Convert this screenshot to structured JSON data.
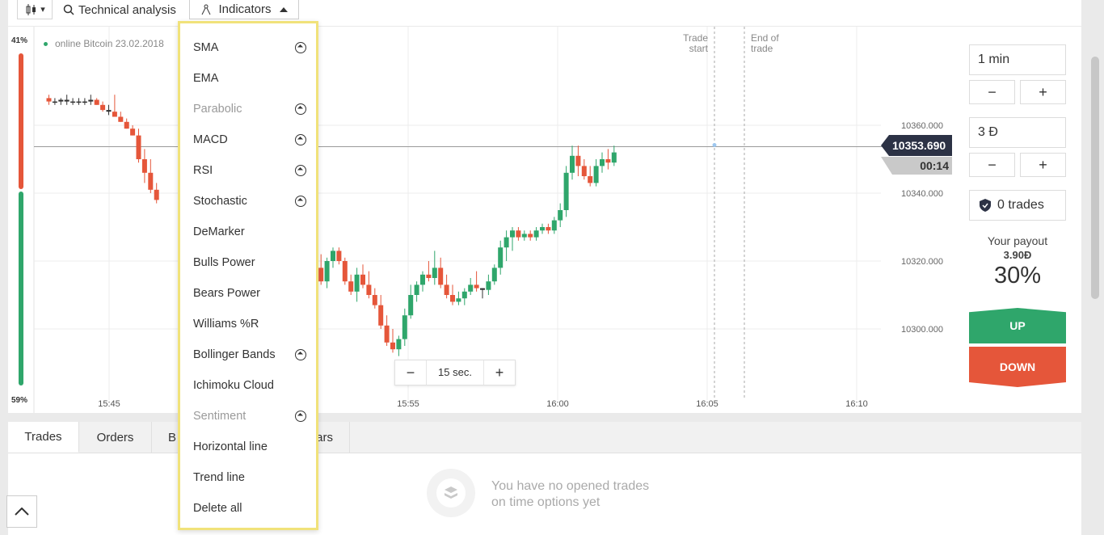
{
  "toolbar": {
    "chart_type_caret": "▾",
    "technical_analysis_label": "Technical analysis",
    "indicators_label": "Indicators"
  },
  "chart": {
    "asset_label": "online Bitcoin 23.02.2018",
    "pct_top": "41%",
    "pct_bottom": "59%",
    "trade_start_label": [
      "Trade",
      "start"
    ],
    "end_of_trade_label": [
      "End of",
      "trade"
    ],
    "current_price": "10353.690",
    "countdown": "00:14",
    "zoom_minus": "−",
    "zoom_value": "15 sec.",
    "zoom_plus": "+",
    "colors": {
      "up": "#2fa66b",
      "down": "#e5563a",
      "price_tag": "#2c3245",
      "countdown_tag": "#c9c9c9"
    }
  },
  "chart_data": {
    "type": "candlestick",
    "y_ticks": [
      "10360.000",
      "10340.000",
      "10320.000",
      "10300.000"
    ],
    "x_ticks": [
      "15:45",
      "15:55",
      "16:00",
      "16:05",
      "16:10"
    ],
    "ylim": [
      10292,
      10372
    ],
    "candles": [
      [
        0.1,
        10368,
        10369,
        10366,
        10367
      ],
      [
        0.14,
        10367,
        10368,
        10366,
        10367
      ],
      [
        0.18,
        10367,
        10368,
        10366,
        10367.5
      ],
      [
        0.22,
        10367.5,
        10369,
        10366,
        10367
      ],
      [
        0.26,
        10367,
        10368,
        10366,
        10367
      ],
      [
        0.3,
        10367,
        10368,
        10366,
        10367
      ],
      [
        0.34,
        10367,
        10368,
        10366,
        10367
      ],
      [
        0.38,
        10367,
        10369,
        10366,
        10367.5
      ],
      [
        0.42,
        10367.5,
        10368,
        10366,
        10366
      ],
      [
        0.46,
        10366,
        10367,
        10364,
        10364.5
      ],
      [
        0.5,
        10364.5,
        10366,
        10363,
        10364
      ],
      [
        0.54,
        10364,
        10369,
        10363,
        10362.5
      ],
      [
        0.58,
        10362.5,
        10364,
        10361,
        10361
      ],
      [
        0.62,
        10361,
        10362,
        10359,
        10359
      ],
      [
        0.66,
        10359,
        10360,
        10357,
        10357
      ],
      [
        0.7,
        10357,
        10359,
        10349,
        10350
      ],
      [
        0.74,
        10350,
        10353,
        10343,
        10346
      ],
      [
        0.78,
        10346,
        10350,
        10340,
        10341
      ],
      [
        0.82,
        10341,
        10343,
        10337,
        10338
      ],
      [
        1.8,
        10320,
        10322,
        10300,
        10301
      ],
      [
        1.84,
        10301,
        10315,
        10300,
        10313
      ],
      [
        1.88,
        10313,
        10319,
        10311,
        10318
      ],
      [
        1.92,
        10318,
        10322,
        10313,
        10314
      ],
      [
        1.96,
        10314,
        10321,
        10312,
        10320
      ],
      [
        2.0,
        10320,
        10324,
        10318,
        10323
      ],
      [
        2.04,
        10323,
        10324,
        10319,
        10320
      ],
      [
        2.08,
        10320,
        10321,
        10313,
        10314
      ],
      [
        2.12,
        10314,
        10316,
        10310,
        10311
      ],
      [
        2.16,
        10311,
        10318,
        10308,
        10316
      ],
      [
        2.2,
        10316,
        10319,
        10312,
        10313
      ],
      [
        2.24,
        10313,
        10317,
        10309,
        10310
      ],
      [
        2.28,
        10310,
        10312,
        10306,
        10307
      ],
      [
        2.32,
        10307,
        10310,
        10300,
        10301
      ],
      [
        2.36,
        10301,
        10304,
        10295,
        10296
      ],
      [
        2.4,
        10296,
        10300,
        10293,
        10294
      ],
      [
        2.44,
        10294,
        10298,
        10292,
        10297
      ],
      [
        2.48,
        10297,
        10306,
        10295,
        10304
      ],
      [
        2.52,
        10304,
        10313,
        10303,
        10310
      ],
      [
        2.56,
        10310,
        10314,
        10308,
        10313
      ],
      [
        2.6,
        10313,
        10317,
        10311,
        10316
      ],
      [
        2.64,
        10316,
        10320,
        10314,
        10315
      ],
      [
        2.68,
        10315,
        10323,
        10313,
        10318
      ],
      [
        2.72,
        10318,
        10321,
        10312,
        10313
      ],
      [
        2.76,
        10313,
        10316,
        10309,
        10310
      ],
      [
        2.8,
        10310,
        10313,
        10307,
        10308
      ],
      [
        2.84,
        10308,
        10311,
        10307,
        10309
      ],
      [
        2.88,
        10309,
        10312,
        10307,
        10311
      ],
      [
        2.92,
        10311,
        10315,
        10310,
        10313
      ],
      [
        2.96,
        10313,
        10317,
        10311,
        10312
      ],
      [
        3.0,
        10312,
        10312,
        10309,
        10311.5
      ],
      [
        3.04,
        10311.5,
        10316,
        10310,
        10314
      ],
      [
        3.08,
        10314,
        10319,
        10313,
        10318
      ],
      [
        3.12,
        10318,
        10326,
        10316,
        10324
      ],
      [
        3.16,
        10324,
        10329,
        10320,
        10327
      ],
      [
        3.2,
        10327,
        10330,
        10323,
        10329
      ],
      [
        3.24,
        10329,
        10330,
        10326,
        10327
      ],
      [
        3.28,
        10327,
        10329,
        10326,
        10328
      ],
      [
        3.32,
        10328,
        10329,
        10326,
        10327
      ],
      [
        3.36,
        10327,
        10330,
        10326,
        10329
      ],
      [
        3.4,
        10329,
        10331,
        10328,
        10330
      ],
      [
        3.44,
        10330,
        10331,
        10328,
        10329
      ],
      [
        3.48,
        10329,
        10333,
        10328,
        10332
      ],
      [
        3.52,
        10332,
        10337,
        10330,
        10335
      ],
      [
        3.56,
        10335,
        10348,
        10333,
        10346
      ],
      [
        3.6,
        10346,
        10354,
        10344,
        10351
      ],
      [
        3.64,
        10351,
        10354,
        10345,
        10348
      ],
      [
        3.68,
        10348,
        10350,
        10344,
        10345
      ],
      [
        3.72,
        10345,
        10348,
        10342,
        10343
      ],
      [
        3.76,
        10343,
        10350,
        10342,
        10348
      ],
      [
        3.8,
        10348,
        10352,
        10346,
        10350
      ],
      [
        3.84,
        10350,
        10353,
        10347,
        10349
      ],
      [
        3.88,
        10349,
        10354,
        10348,
        10352
      ]
    ]
  },
  "controls": {
    "duration": "1 min",
    "duration_minus": "−",
    "duration_plus": "+",
    "amount": "3 Đ",
    "amount_minus": "−",
    "amount_plus": "+",
    "trades_label": "0 trades",
    "payout_label": "Your payout",
    "payout_value": "3.90Đ",
    "payout_percent": "30%",
    "up_label": "UP",
    "down_label": "DOWN"
  },
  "bottom": {
    "tabs": [
      "Trades",
      "Orders",
      "B",
      "ars"
    ],
    "empty_line1": "You have no opened trades",
    "empty_line2": "on time options yet",
    "collapse_icon": "chevron-up-icon"
  },
  "dropdown": {
    "items": [
      {
        "label": "SMA",
        "icon": true,
        "disabled": false
      },
      {
        "label": "EMA",
        "icon": false,
        "disabled": false
      },
      {
        "label": "Parabolic",
        "icon": true,
        "disabled": true
      },
      {
        "label": "MACD",
        "icon": true,
        "disabled": false
      },
      {
        "label": "RSI",
        "icon": true,
        "disabled": false
      },
      {
        "label": "Stochastic",
        "icon": true,
        "disabled": false
      },
      {
        "label": "DeMarker",
        "icon": false,
        "disabled": false
      },
      {
        "label": "Bulls Power",
        "icon": false,
        "disabled": false
      },
      {
        "label": "Bears Power",
        "icon": false,
        "disabled": false
      },
      {
        "label": "Williams %R",
        "icon": false,
        "disabled": false
      },
      {
        "label": "Bollinger Bands",
        "icon": true,
        "disabled": false
      },
      {
        "label": "Ichimoku Cloud",
        "icon": false,
        "disabled": false
      },
      {
        "label": "Sentiment",
        "icon": true,
        "disabled": true
      },
      {
        "label": "Horizontal line",
        "icon": false,
        "disabled": false
      },
      {
        "label": "Trend line",
        "icon": false,
        "disabled": false
      },
      {
        "label": "Delete all",
        "icon": false,
        "disabled": false
      }
    ]
  }
}
